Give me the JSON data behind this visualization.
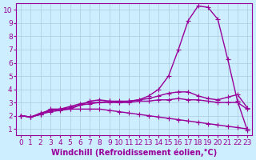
{
  "xlabel": "Windchill (Refroidissement éolien,°C)",
  "ylabel": "",
  "bg_color": "#cceeff",
  "line_color": "#990099",
  "grid_color": "#aaccdd",
  "x_values": [
    0,
    1,
    2,
    3,
    4,
    5,
    6,
    7,
    8,
    9,
    10,
    11,
    12,
    13,
    14,
    15,
    16,
    17,
    18,
    19,
    20,
    21,
    22,
    23
  ],
  "lines": [
    [
      2.0,
      1.9,
      2.1,
      2.4,
      2.5,
      2.5,
      2.8,
      3.1,
      3.2,
      3.1,
      3.0,
      3.1,
      3.2,
      3.5,
      4.0,
      5.0,
      7.0,
      9.2,
      10.3,
      10.2,
      9.3,
      6.3,
      3.1,
      0.9
    ],
    [
      2.0,
      1.9,
      2.1,
      2.5,
      2.5,
      2.7,
      2.9,
      3.0,
      3.0,
      3.1,
      3.1,
      3.1,
      3.2,
      3.3,
      3.5,
      3.7,
      3.8,
      3.8,
      3.5,
      3.3,
      3.2,
      3.4,
      3.6,
      2.6
    ],
    [
      2.0,
      1.9,
      2.2,
      2.4,
      2.5,
      2.6,
      2.8,
      2.9,
      3.0,
      3.0,
      3.0,
      3.0,
      3.1,
      3.1,
      3.2,
      3.2,
      3.3,
      3.2,
      3.2,
      3.1,
      3.0,
      3.0,
      3.0,
      2.5
    ],
    [
      2.0,
      1.9,
      2.1,
      2.3,
      2.4,
      2.5,
      2.5,
      2.5,
      2.5,
      2.4,
      2.3,
      2.2,
      2.1,
      2.0,
      1.9,
      1.8,
      1.7,
      1.6,
      1.5,
      1.4,
      1.3,
      1.2,
      1.1,
      1.0
    ]
  ],
  "xlim": [
    -0.5,
    23.5
  ],
  "ylim": [
    0.5,
    10.5
  ],
  "yticks": [
    1,
    2,
    3,
    4,
    5,
    6,
    7,
    8,
    9,
    10
  ],
  "xticks": [
    0,
    1,
    2,
    3,
    4,
    5,
    6,
    7,
    8,
    9,
    10,
    11,
    12,
    13,
    14,
    15,
    16,
    17,
    18,
    19,
    20,
    21,
    22,
    23
  ],
  "marker": "+",
  "markersize": 4,
  "linewidth": 1.0,
  "xlabel_fontsize": 7,
  "tick_fontsize": 6.5,
  "title_fontsize": 0
}
